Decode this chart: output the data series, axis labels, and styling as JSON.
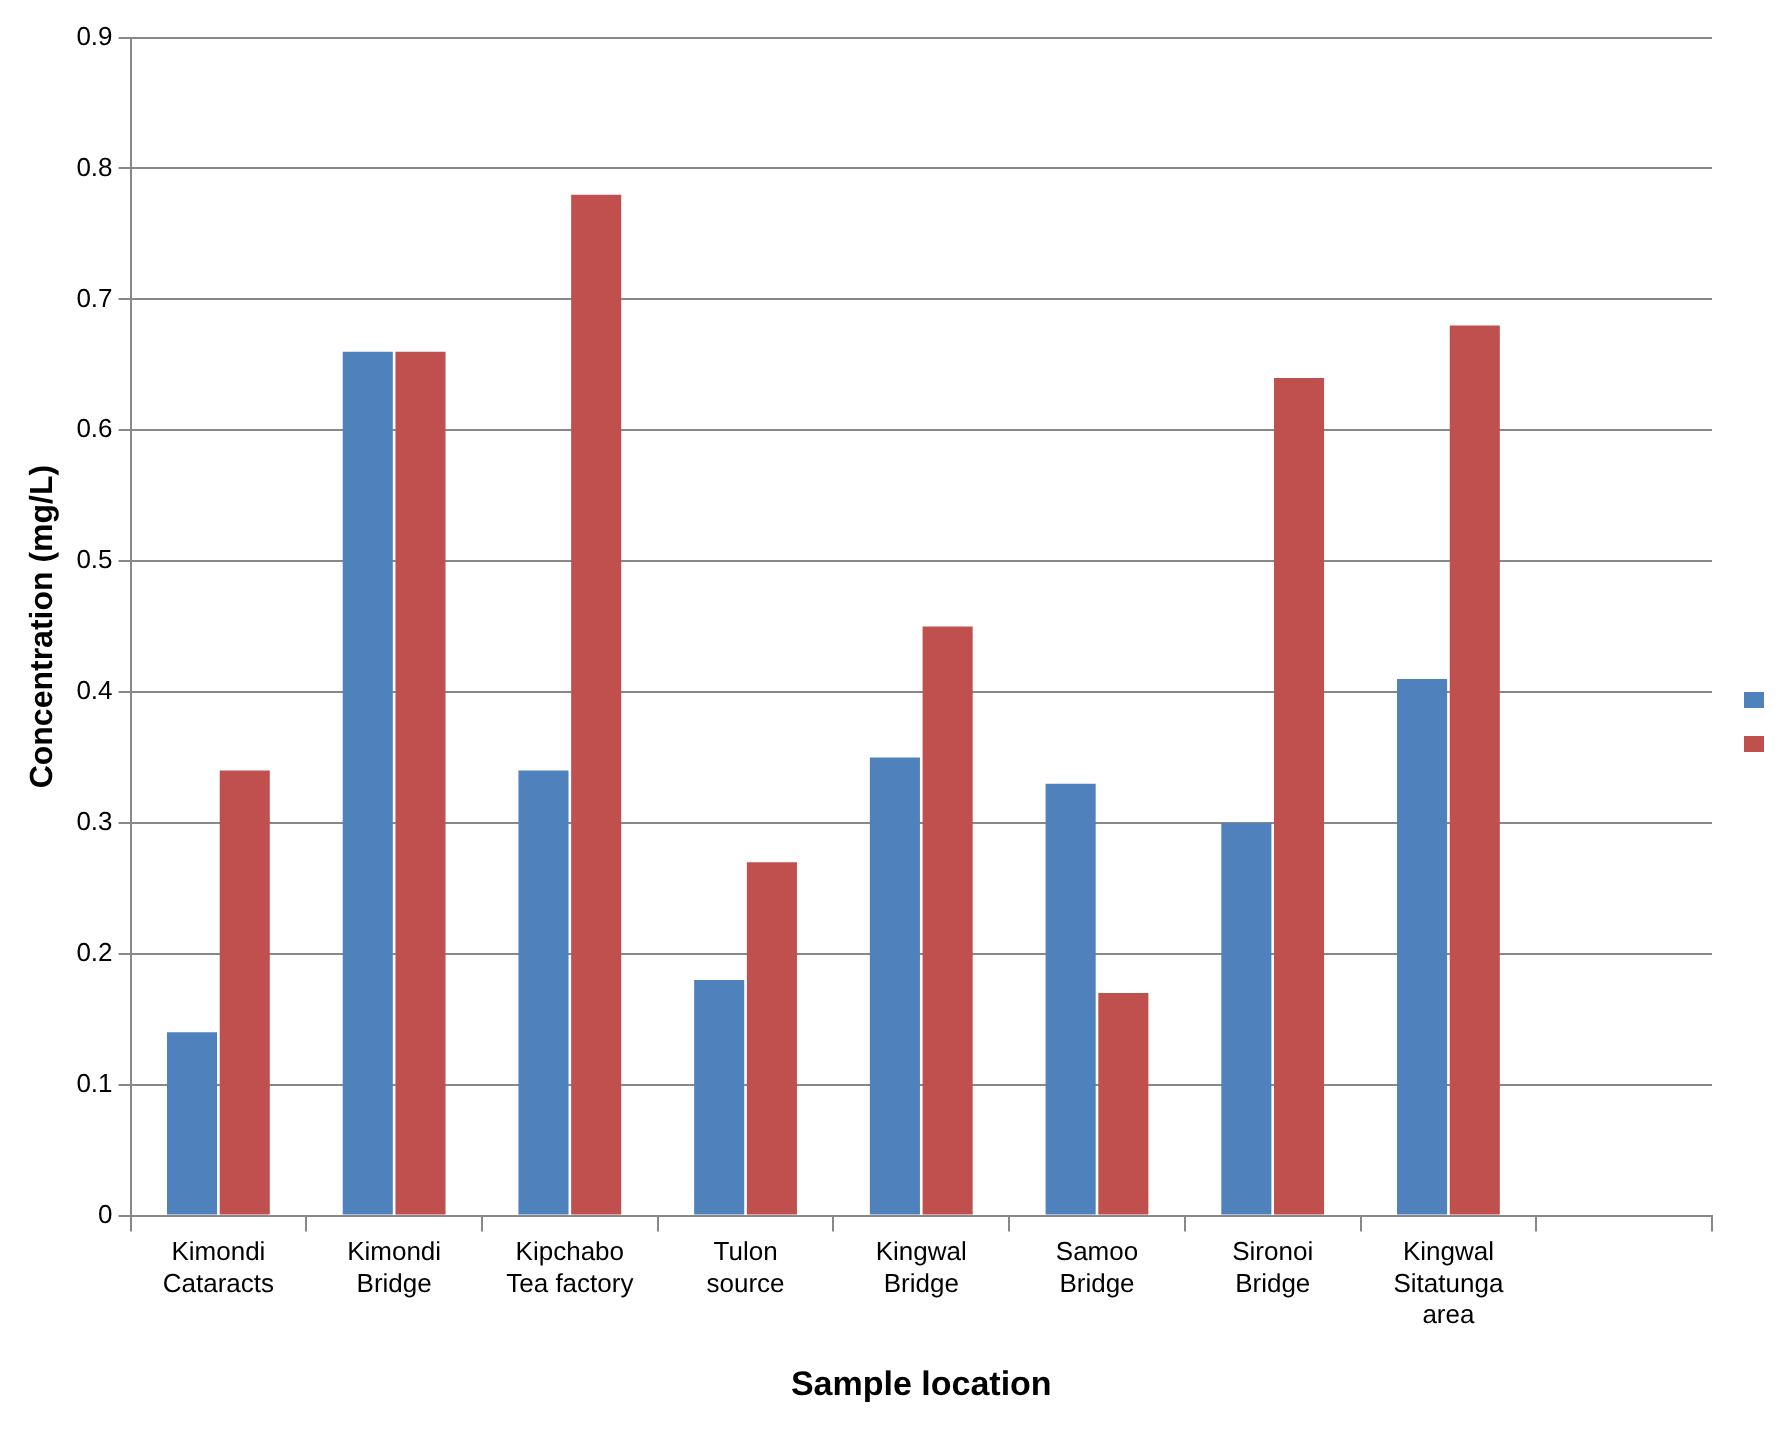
{
  "chart_data": {
    "type": "bar",
    "xlabel": "Sample location",
    "ylabel": "Concentration (mg/L)",
    "categories": [
      "Kimondi Cataracts",
      "Kimondi Bridge",
      "Kipchabo Tea factory",
      "Tulon source",
      "Kingwal Bridge",
      "Samoo Bridge",
      "Sironoi Bridge",
      "Kingwal Sitatunga area",
      null
    ],
    "series": [
      {
        "color": "#4f81bd",
        "values": [
          0.14,
          0.66,
          0.34,
          0.18,
          0.35,
          0.33,
          0.3,
          0.41,
          null
        ]
      },
      {
        "color": "#c0504d",
        "values": [
          0.34,
          0.66,
          0.78,
          0.27,
          0.45,
          0.17,
          0.64,
          0.68,
          null
        ]
      }
    ],
    "ylim": [
      0,
      0.9
    ],
    "yticks": [
      0,
      0.1,
      0.2,
      0.3,
      0.4,
      0.5,
      0.6,
      0.7,
      0.8,
      0.9
    ],
    "grid": "y"
  }
}
